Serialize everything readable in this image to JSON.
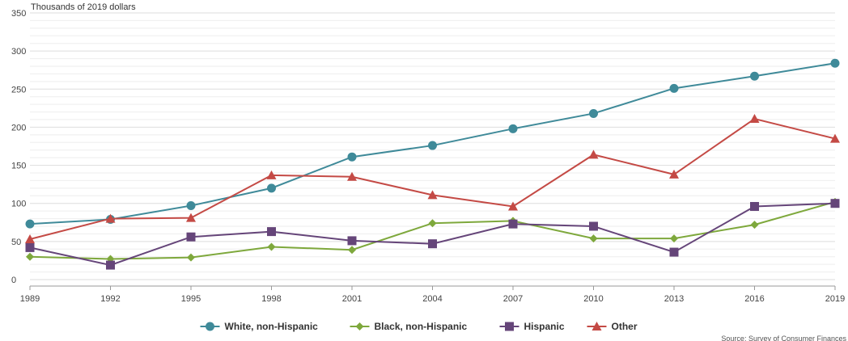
{
  "chart_data": {
    "type": "line",
    "ylabel": "Thousands of 2019 dollars",
    "ylim": [
      0,
      350
    ],
    "yticks": [
      0,
      50,
      100,
      150,
      200,
      250,
      300,
      350
    ],
    "grid": true,
    "legend_position": "bottom",
    "x": [
      "1989",
      "1992",
      "1995",
      "1998",
      "2001",
      "2004",
      "2007",
      "2010",
      "2013",
      "2016",
      "2019"
    ],
    "series": [
      {
        "name": "White, non-Hispanic",
        "color": "#3f8a99",
        "marker": "circle",
        "values": [
          73,
          79,
          97,
          120,
          161,
          176,
          198,
          218,
          251,
          267,
          284
        ]
      },
      {
        "name": "Black, non-Hispanic",
        "color": "#7ea83c",
        "marker": "diamond",
        "values": [
          30,
          27,
          29,
          43,
          39,
          74,
          77,
          54,
          54,
          72,
          102
        ]
      },
      {
        "name": "Hispanic",
        "color": "#654579",
        "marker": "square",
        "values": [
          42,
          19,
          56,
          63,
          51,
          47,
          73,
          70,
          36,
          96,
          100
        ]
      },
      {
        "name": "Other",
        "color": "#c44a45",
        "marker": "triangle",
        "values": [
          53,
          80,
          81,
          137,
          135,
          111,
          96,
          164,
          138,
          211,
          185
        ]
      }
    ],
    "source": "Source: Survey of Consumer Finances"
  }
}
